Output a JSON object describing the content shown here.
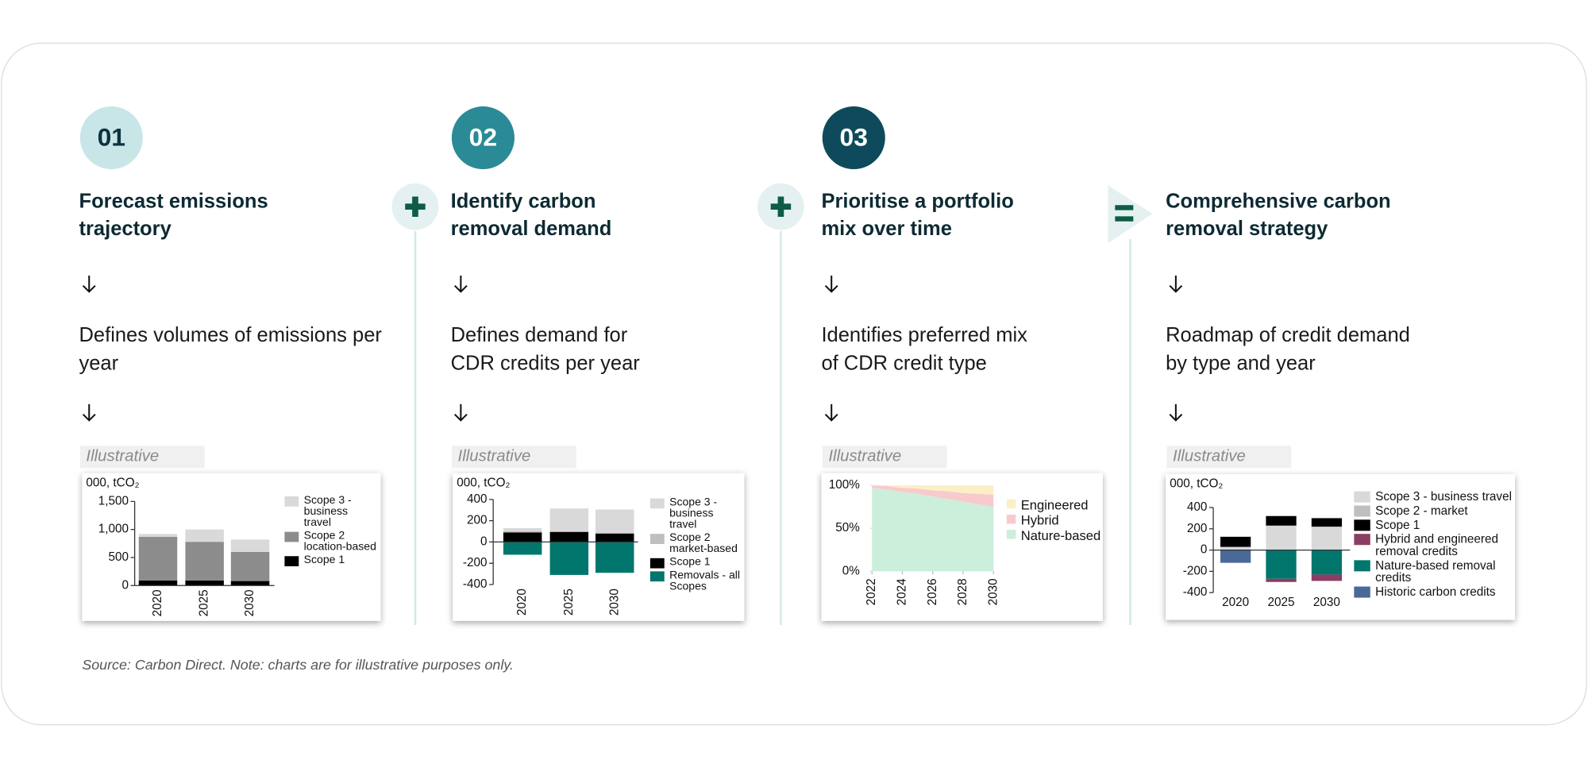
{
  "steps": [
    {
      "number": "01",
      "title": "Forecast emissions trajectory",
      "description": "Defines volumes of emissions per year",
      "tag": "Illustrative"
    },
    {
      "number": "02",
      "title": "Identify carbon removal demand",
      "description": "Defines demand for CDR credits per year",
      "tag": "Illustrative"
    },
    {
      "number": "03",
      "title": "Prioritise a portfolio mix over time",
      "description": "Identifies preferred mix of CDR credit type",
      "tag": "Illustrative"
    },
    {
      "title": "Comprehensive carbon removal strategy",
      "description": "Roadmap of credit demand by type and year",
      "tag": "Illustrative"
    }
  ],
  "source": "Source: Carbon Direct. Note: charts are for illustrative purposes only.",
  "chart_data": [
    {
      "type": "bar",
      "y_axis_label": "000, tCO₂",
      "categories": [
        "2020",
        "2025",
        "2030"
      ],
      "ylim": [
        0,
        1500
      ],
      "yticks": [
        0,
        500,
        {
          "value": 1000,
          "label": "1,000"
        },
        {
          "value": 1500,
          "label": "1,500"
        }
      ],
      "series": [
        {
          "name": "Scope 3 - business travel",
          "color": "#d9d9d9",
          "values": [
            50,
            220,
            220
          ]
        },
        {
          "name": "Scope 2 location-based",
          "color": "#8c8c8c",
          "values": [
            780,
            690,
            520
          ]
        },
        {
          "name": "Scope 1",
          "color": "#000000",
          "values": [
            90,
            90,
            80
          ]
        }
      ]
    },
    {
      "type": "bar",
      "y_axis_label": "000, tCO₂",
      "categories": [
        "2020",
        "2025",
        "2030"
      ],
      "ylim": [
        -400,
        400
      ],
      "yticks": [
        -400,
        -200,
        0,
        200,
        400
      ],
      "series": [
        {
          "name": "Scope 3 - business travel",
          "color": "#d9d9d9",
          "values": [
            30,
            220,
            225
          ]
        },
        {
          "name": "Scope 2 market-based",
          "color": "#bfbfbf",
          "values": [
            10,
            0,
            0
          ]
        },
        {
          "name": "Scope 1",
          "color": "#000000",
          "values": [
            90,
            95,
            80
          ]
        },
        {
          "name": "Removals - all Scopes",
          "color": "#00766c",
          "values": [
            -120,
            -310,
            -290
          ]
        }
      ]
    },
    {
      "type": "area",
      "x": [
        2022,
        2023,
        2024,
        2025,
        2026,
        2027,
        2028,
        2029,
        2030
      ],
      "xlim": [
        2022,
        2030
      ],
      "xticks": [
        2022,
        2024,
        2026,
        2028,
        2030
      ],
      "ylim": [
        0,
        100
      ],
      "yticks": [
        {
          "value": 0,
          "label": "0%"
        },
        {
          "value": 50,
          "label": "50%"
        },
        {
          "value": 100,
          "label": "100%"
        }
      ],
      "series": [
        {
          "name": "Engineered",
          "color": "#fcefc6",
          "values": [
            0,
            1,
            3,
            4,
            6,
            7,
            9,
            10,
            11
          ]
        },
        {
          "name": "Hybrid",
          "color": "#f8cacd",
          "values": [
            3,
            4,
            5,
            6,
            7,
            9,
            10,
            12,
            14
          ]
        },
        {
          "name": "Nature-based",
          "color": "#ccefdb",
          "values": [
            97,
            95,
            92,
            90,
            87,
            84,
            81,
            78,
            75
          ]
        }
      ]
    },
    {
      "type": "bar",
      "y_axis_label": "000, tCO₂",
      "categories": [
        "2020",
        "2025",
        "2030"
      ],
      "ylim": [
        -400,
        400
      ],
      "yticks": [
        -400,
        -200,
        0,
        200,
        400
      ],
      "series": [
        {
          "name": "Scope 3 - business travel",
          "color": "#d9d9d9",
          "values": [
            30,
            230,
            220
          ]
        },
        {
          "name": "Scope 2 - market",
          "color": "#bfbfbf",
          "values": [
            0,
            0,
            0
          ]
        },
        {
          "name": "Scope 1",
          "color": "#000000",
          "values": [
            95,
            90,
            80
          ]
        },
        {
          "name": "Hybrid and engineered removal credits",
          "color": "#8c3d63",
          "values": [
            0,
            -30,
            -60
          ]
        },
        {
          "name": "Nature-based removal credits",
          "color": "#00766c",
          "values": [
            0,
            -270,
            -230
          ]
        },
        {
          "name": "Historic carbon credits",
          "color": "#4a6998",
          "values": [
            -120,
            0,
            0
          ]
        }
      ]
    }
  ]
}
